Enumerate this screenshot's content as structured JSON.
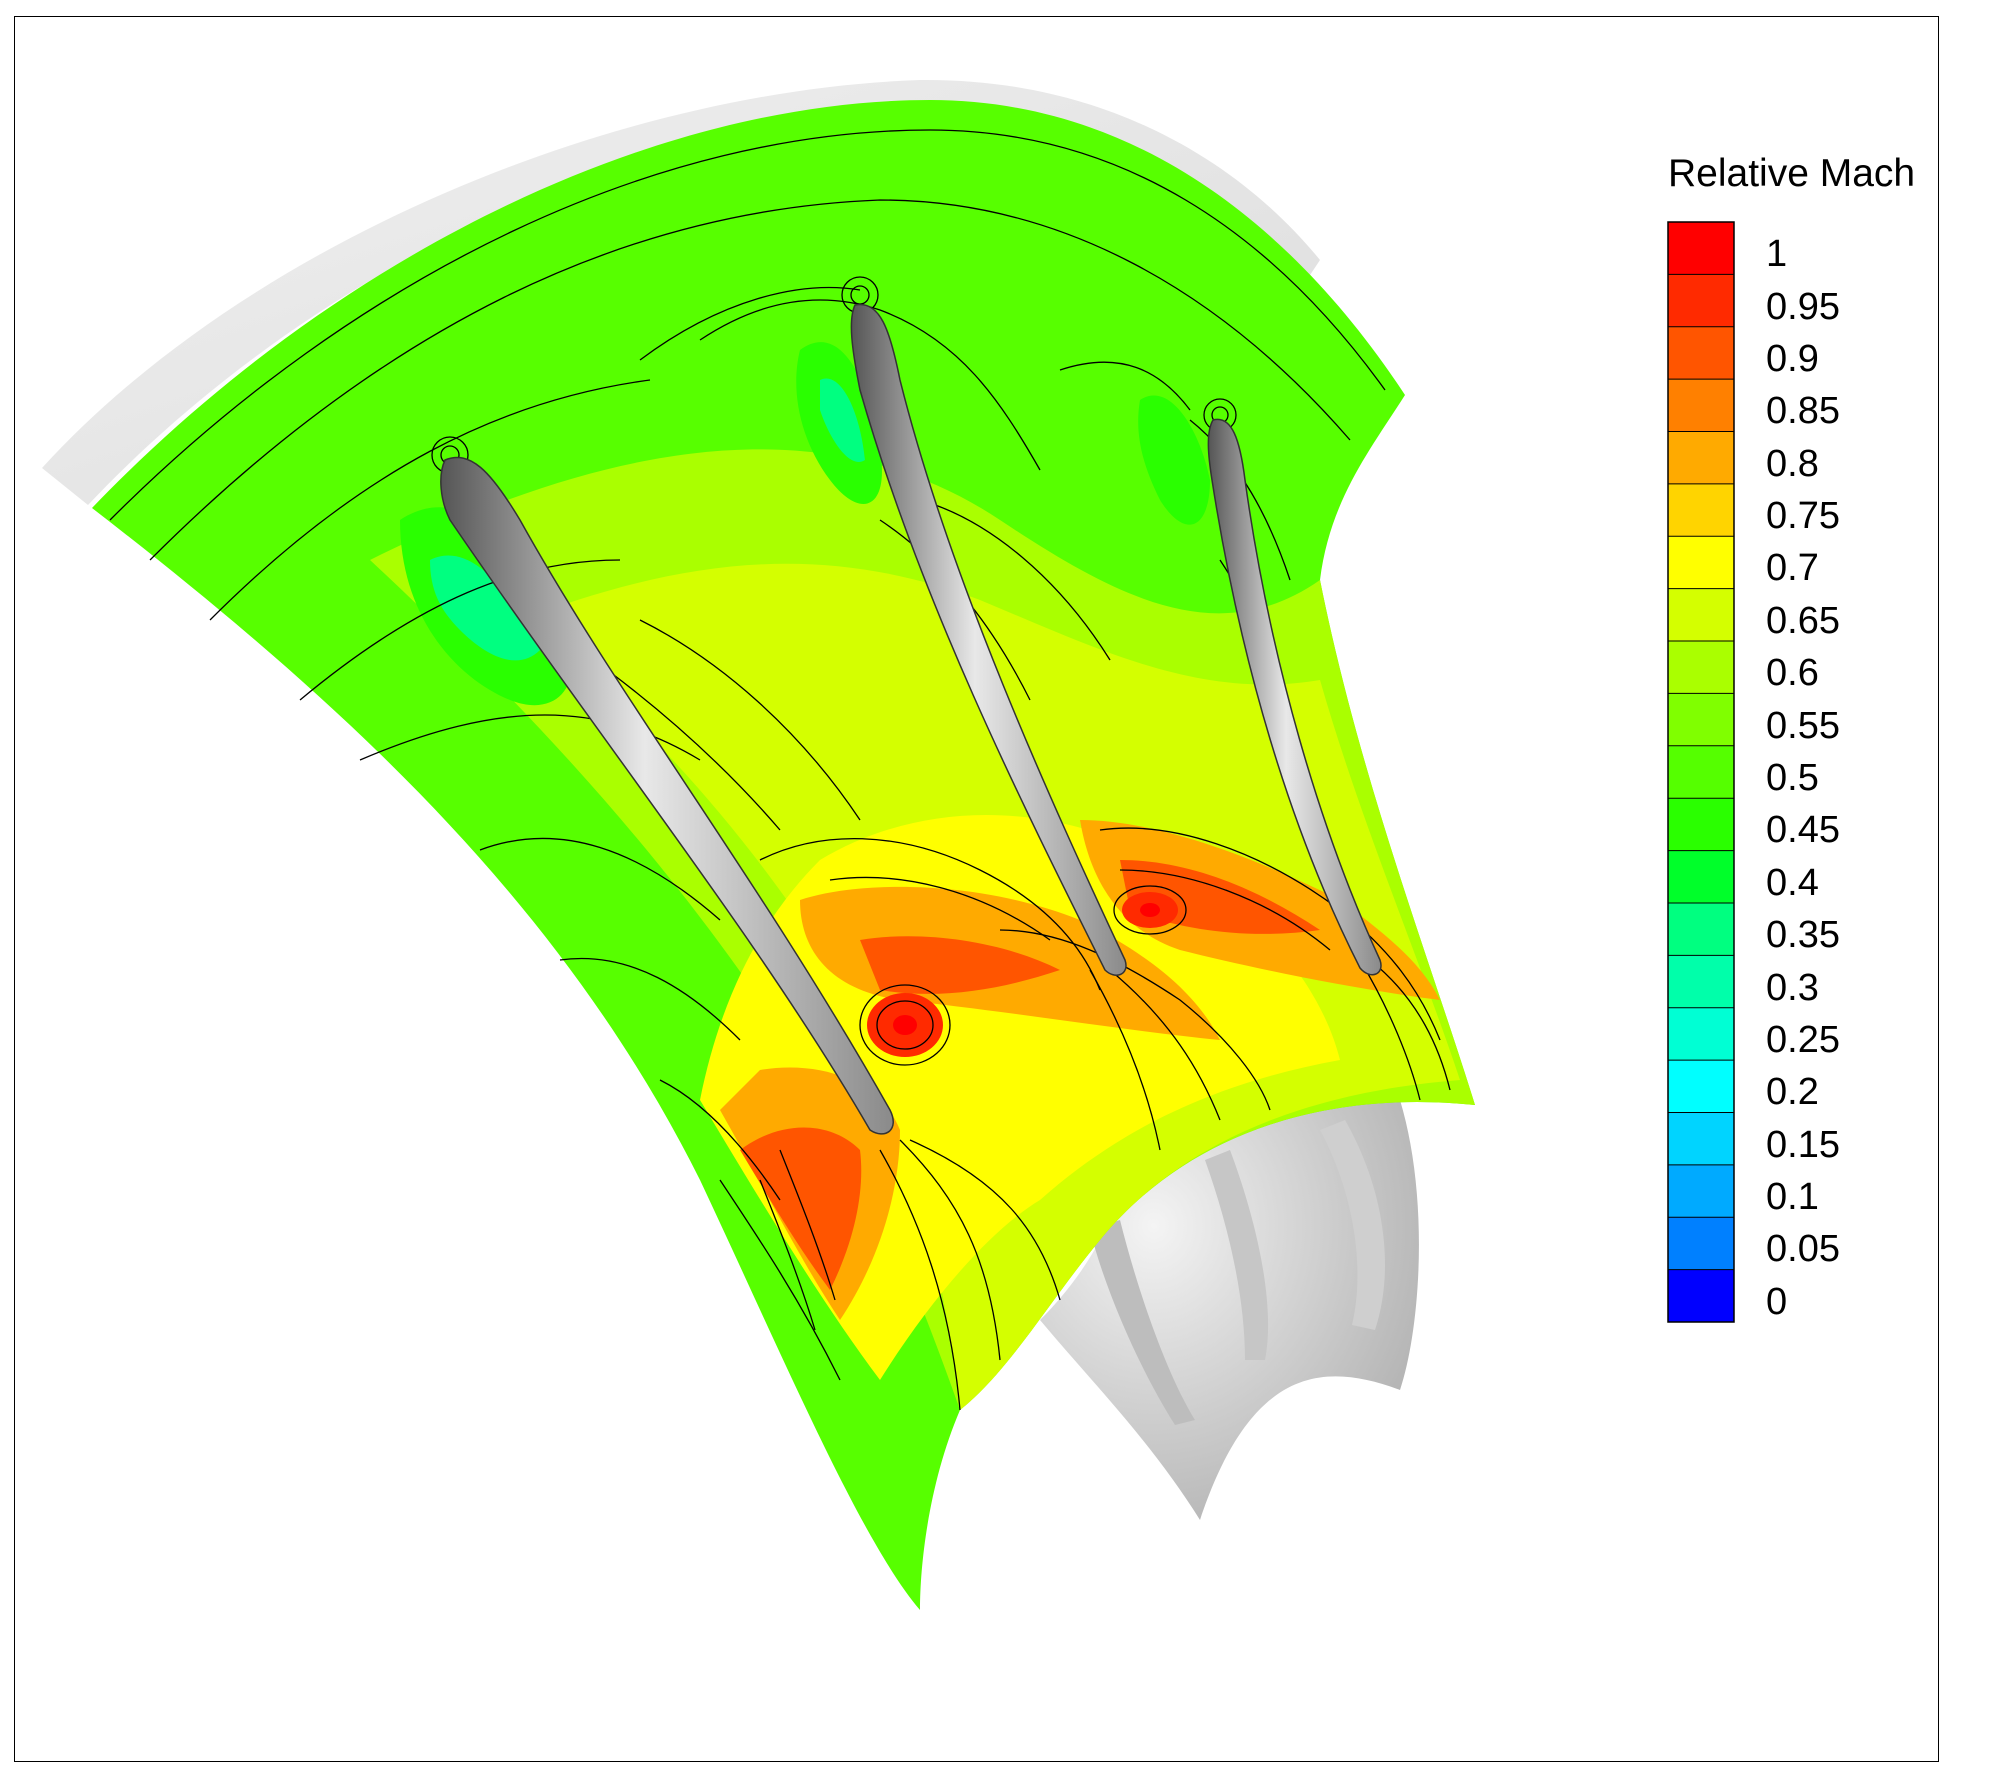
{
  "chart_data": {
    "type": "contour",
    "legend": {
      "title": "Relative Mach",
      "placement": "right",
      "levels": [
        1,
        0.95,
        0.9,
        0.85,
        0.8,
        0.75,
        0.7,
        0.65,
        0.6,
        0.55,
        0.5,
        0.45,
        0.4,
        0.35,
        0.3,
        0.25,
        0.2,
        0.15,
        0.1,
        0.05,
        0
      ],
      "labels": [
        "1",
        "0.95",
        "0.9",
        "0.85",
        "0.8",
        "0.75",
        "0.7",
        "0.65",
        "0.6",
        "0.55",
        "0.5",
        "0.45",
        "0.4",
        "0.35",
        "0.3",
        "0.25",
        "0.2",
        "0.15",
        "0.1",
        "0.05",
        "0"
      ],
      "colors": [
        "#ff0000",
        "#ff2a00",
        "#ff5500",
        "#ff8000",
        "#ffaa00",
        "#ffd400",
        "#ffff00",
        "#d4ff00",
        "#aaff00",
        "#80ff00",
        "#55ff00",
        "#2aff00",
        "#00ff2a",
        "#00ff80",
        "#00ffaa",
        "#00ffd4",
        "#00ffff",
        "#00d4ff",
        "#00aaff",
        "#0080ff",
        "#0000ff"
      ]
    },
    "blades": 3,
    "grid": false
  }
}
